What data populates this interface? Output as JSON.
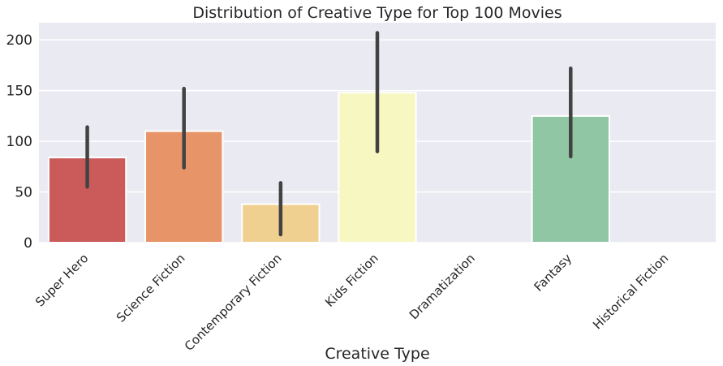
{
  "chart_data": {
    "type": "bar",
    "title": "Distribution of Creative Type for Top 100 Movies",
    "xlabel": "Creative Type",
    "ylabel": "",
    "categories": [
      "Super Hero",
      "Science Fiction",
      "Contemporary Fiction",
      "Kids Fiction",
      "Dramatization",
      "Fantasy",
      "Historical Fiction"
    ],
    "values": [
      84,
      110,
      38,
      148,
      0,
      125,
      0
    ],
    "error_low": [
      55,
      74,
      8,
      90,
      null,
      85,
      null
    ],
    "error_high": [
      114,
      152,
      59,
      207,
      null,
      172,
      null
    ],
    "colors": [
      "#cb5b5a",
      "#e69468",
      "#f0d090",
      "#f7f7c2",
      "#c6e6a0",
      "#90c6a4",
      "#6699c0"
    ],
    "ylim": [
      0,
      217
    ],
    "yticks": [
      0,
      50,
      100,
      150,
      200
    ],
    "grid": true,
    "background": "#eaeaf2",
    "error_color": "#424242"
  }
}
